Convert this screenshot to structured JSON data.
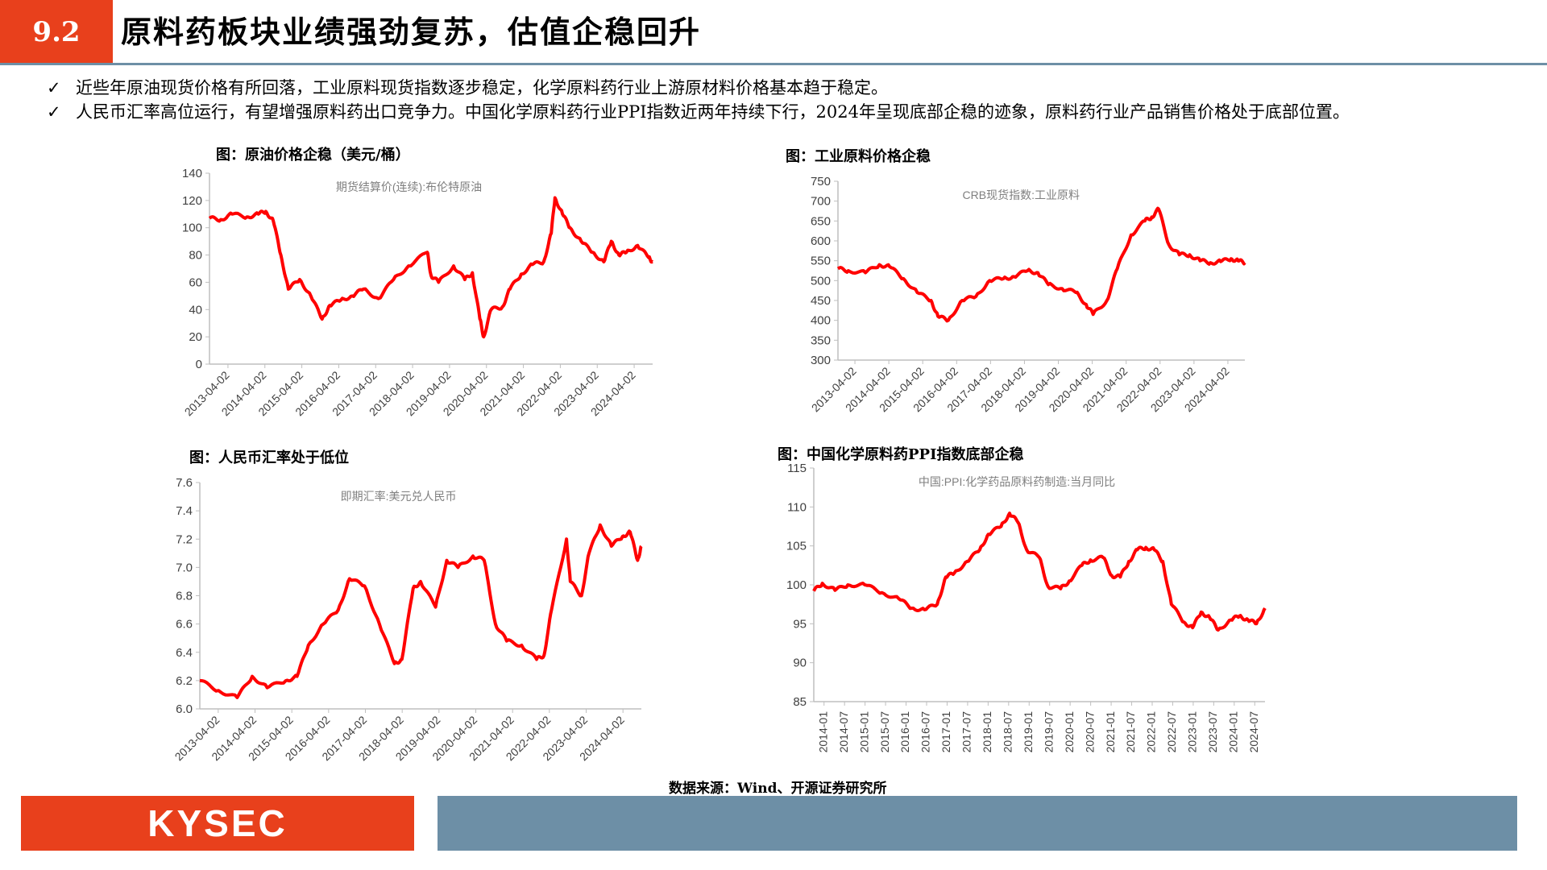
{
  "header": {
    "section_number": "9.2",
    "title": "原料药板块业绩强劲复苏，估值企稳回升"
  },
  "bullets": [
    {
      "mark": "✓",
      "text": "近些年原油现货价格有所回落，工业原料现货指数逐步稳定，化学原料药行业上游原材料价格基本趋于稳定。"
    },
    {
      "mark": "✓",
      "text": "人民币汇率高位运行，有望增强原料药出口竞争力。中国化学原料药行业PPI指数近两年持续下行，2024年呈现底部企稳的迹象，原料药行业产品销售价格处于底部位置。"
    }
  ],
  "colors": {
    "accent": "#e8401c",
    "series": "#ff0000",
    "footer_band": "#6d8fa6",
    "axis": "#bfbfbf"
  },
  "chart_data": [
    {
      "type": "line",
      "title": "图：原油价格企稳（美元/桶）",
      "series_name": "期货结算价(连续):布伦特原油",
      "x_ticks": [
        "2013-04-02",
        "2014-04-02",
        "2015-04-02",
        "2016-04-02",
        "2017-04-02",
        "2018-04-02",
        "2019-04-02",
        "2020-04-02",
        "2021-04-02",
        "2022-04-02",
        "2023-04-02",
        "2024-04-02"
      ],
      "xlim": [
        2013.0,
        2024.8
      ],
      "y_ticks": [
        "0",
        "20",
        "40",
        "60",
        "80",
        "100",
        "120",
        "140"
      ],
      "ylim": [
        0,
        140
      ],
      "x": [
        2013.0,
        2013.3,
        2013.6,
        2014.0,
        2014.3,
        2014.5,
        2014.7,
        2014.9,
        2015.1,
        2015.4,
        2015.7,
        2016.0,
        2016.2,
        2016.5,
        2016.8,
        2017.1,
        2017.5,
        2017.9,
        2018.3,
        2018.8,
        2018.9,
        2019.1,
        2019.5,
        2019.8,
        2020.0,
        2020.2,
        2020.3,
        2020.5,
        2020.8,
        2021.0,
        2021.3,
        2021.6,
        2021.9,
        2022.1,
        2022.2,
        2022.4,
        2022.6,
        2022.9,
        2023.2,
        2023.5,
        2023.7,
        2023.9,
        2024.1,
        2024.4,
        2024.7,
        2024.8
      ],
      "y": [
        107,
        106,
        110,
        108,
        110,
        112,
        105,
        80,
        55,
        62,
        50,
        33,
        43,
        47,
        50,
        55,
        48,
        62,
        72,
        82,
        65,
        60,
        72,
        62,
        67,
        33,
        20,
        40,
        42,
        55,
        66,
        73,
        75,
        96,
        122,
        110,
        100,
        90,
        82,
        75,
        90,
        80,
        82,
        87,
        78,
        75
      ]
    },
    {
      "type": "line",
      "title": "图：工业原料价格企稳",
      "series_name": "CRB现货指数:工业原料",
      "x_ticks": [
        "2013-04-02",
        "2014-04-02",
        "2015-04-02",
        "2016-04-02",
        "2017-04-02",
        "2018-04-02",
        "2019-04-02",
        "2020-04-02",
        "2021-04-02",
        "2022-04-02",
        "2023-04-02",
        "2024-04-02"
      ],
      "xlim": [
        2013.0,
        2024.8
      ],
      "y_ticks": [
        "300",
        "350",
        "400",
        "450",
        "500",
        "550",
        "600",
        "650",
        "700",
        "750"
      ],
      "ylim": [
        300,
        750
      ],
      "x": [
        2013.0,
        2013.3,
        2013.8,
        2014.2,
        2014.5,
        2014.9,
        2015.3,
        2015.7,
        2015.9,
        2016.2,
        2016.6,
        2017.0,
        2017.4,
        2017.8,
        2018.1,
        2018.5,
        2018.8,
        2019.1,
        2019.5,
        2019.9,
        2020.2,
        2020.4,
        2020.8,
        2021.1,
        2021.5,
        2021.9,
        2022.1,
        2022.3,
        2022.6,
        2022.9,
        2023.2,
        2023.5,
        2023.8,
        2024.1,
        2024.4,
        2024.6,
        2024.8
      ],
      "y": [
        530,
        525,
        520,
        540,
        535,
        505,
        470,
        450,
        410,
        400,
        450,
        460,
        500,
        505,
        510,
        525,
        520,
        490,
        480,
        470,
        440,
        415,
        450,
        530,
        615,
        650,
        660,
        680,
        590,
        565,
        565,
        550,
        545,
        548,
        555,
        550,
        545
      ]
    },
    {
      "type": "line",
      "title": "图：人民币汇率处于低位",
      "series_name": "即期汇率:美元兑人民币",
      "x_ticks": [
        "2013-04-02",
        "2014-04-02",
        "2015-04-02",
        "2016-04-02",
        "2017-04-02",
        "2018-04-02",
        "2019-04-02",
        "2020-04-02",
        "2021-04-02",
        "2022-04-02",
        "2023-04-02",
        "2024-04-02"
      ],
      "xlim": [
        2013.0,
        2024.8
      ],
      "y_ticks": [
        "6.0",
        "6.2",
        "6.4",
        "6.6",
        "6.8",
        "7.0",
        "7.2",
        "7.4",
        "7.6"
      ],
      "ylim": [
        6.0,
        7.6
      ],
      "x": [
        2013.0,
        2013.5,
        2014.0,
        2014.4,
        2014.8,
        2015.3,
        2015.6,
        2015.9,
        2016.3,
        2016.7,
        2017.0,
        2017.4,
        2017.8,
        2018.2,
        2018.4,
        2018.7,
        2018.9,
        2019.3,
        2019.6,
        2019.9,
        2020.3,
        2020.6,
        2020.9,
        2021.2,
        2021.6,
        2022.0,
        2022.2,
        2022.4,
        2022.8,
        2022.9,
        2023.2,
        2023.4,
        2023.7,
        2024.0,
        2024.3,
        2024.5,
        2024.7,
        2024.8
      ],
      "y": [
        6.2,
        6.13,
        6.08,
        6.23,
        6.15,
        6.2,
        6.23,
        6.45,
        6.6,
        6.7,
        6.92,
        6.87,
        6.6,
        6.32,
        6.35,
        6.85,
        6.9,
        6.72,
        7.05,
        7.0,
        7.08,
        7.05,
        6.6,
        6.48,
        6.45,
        6.35,
        6.38,
        6.7,
        7.2,
        6.9,
        6.8,
        7.1,
        7.3,
        7.15,
        7.22,
        7.25,
        7.05,
        7.15
      ]
    },
    {
      "type": "line",
      "title": "图：中国化学原料药PPI指数底部企稳",
      "series_name": "中国:PPI:化学药品原料药制造:当月同比",
      "x_ticks": [
        "2014-01",
        "2014-07",
        "2015-01",
        "2015-07",
        "2016-01",
        "2016-07",
        "2017-01",
        "2017-07",
        "2018-01",
        "2018-07",
        "2019-01",
        "2019-07",
        "2020-01",
        "2020-07",
        "2021-01",
        "2021-07",
        "2022-01",
        "2022-07",
        "2023-01",
        "2023-07",
        "2024-01",
        "2024-07"
      ],
      "xlim": [
        2014.0,
        2024.6
      ],
      "y_ticks": [
        "85",
        "90",
        "95",
        "100",
        "105",
        "110",
        "115"
      ],
      "ylim": [
        85,
        115
      ],
      "x": [
        2014.0,
        2014.2,
        2014.5,
        2014.8,
        2015.2,
        2015.6,
        2016.0,
        2016.3,
        2016.6,
        2016.9,
        2017.1,
        2017.3,
        2017.6,
        2017.9,
        2018.1,
        2018.4,
        2018.6,
        2018.8,
        2019.0,
        2019.3,
        2019.5,
        2019.8,
        2020.0,
        2020.3,
        2020.5,
        2020.8,
        2021.0,
        2021.2,
        2021.4,
        2021.6,
        2021.8,
        2022.0,
        2022.2,
        2022.4,
        2022.7,
        2022.9,
        2023.1,
        2023.3,
        2023.5,
        2023.8,
        2024.0,
        2024.2,
        2024.4,
        2024.6
      ],
      "y": [
        99.2,
        100.2,
        99.3,
        100.0,
        100.0,
        99.0,
        98.2,
        97.0,
        96.8,
        97.5,
        101.0,
        101.5,
        103.0,
        104.5,
        106.5,
        107.5,
        109.2,
        108.0,
        104.5,
        103.5,
        99.8,
        99.5,
        100.5,
        102.5,
        103.2,
        103.5,
        101.2,
        101.0,
        103.0,
        104.5,
        104.8,
        104.5,
        103.0,
        97.5,
        95.2,
        94.5,
        96.5,
        95.8,
        94.2,
        95.5,
        96.0,
        95.5,
        95.0,
        97.0
      ]
    }
  ],
  "source_note": "数据来源：Wind、开源证券研究所",
  "footer": {
    "logo_text": "KYSEC"
  }
}
